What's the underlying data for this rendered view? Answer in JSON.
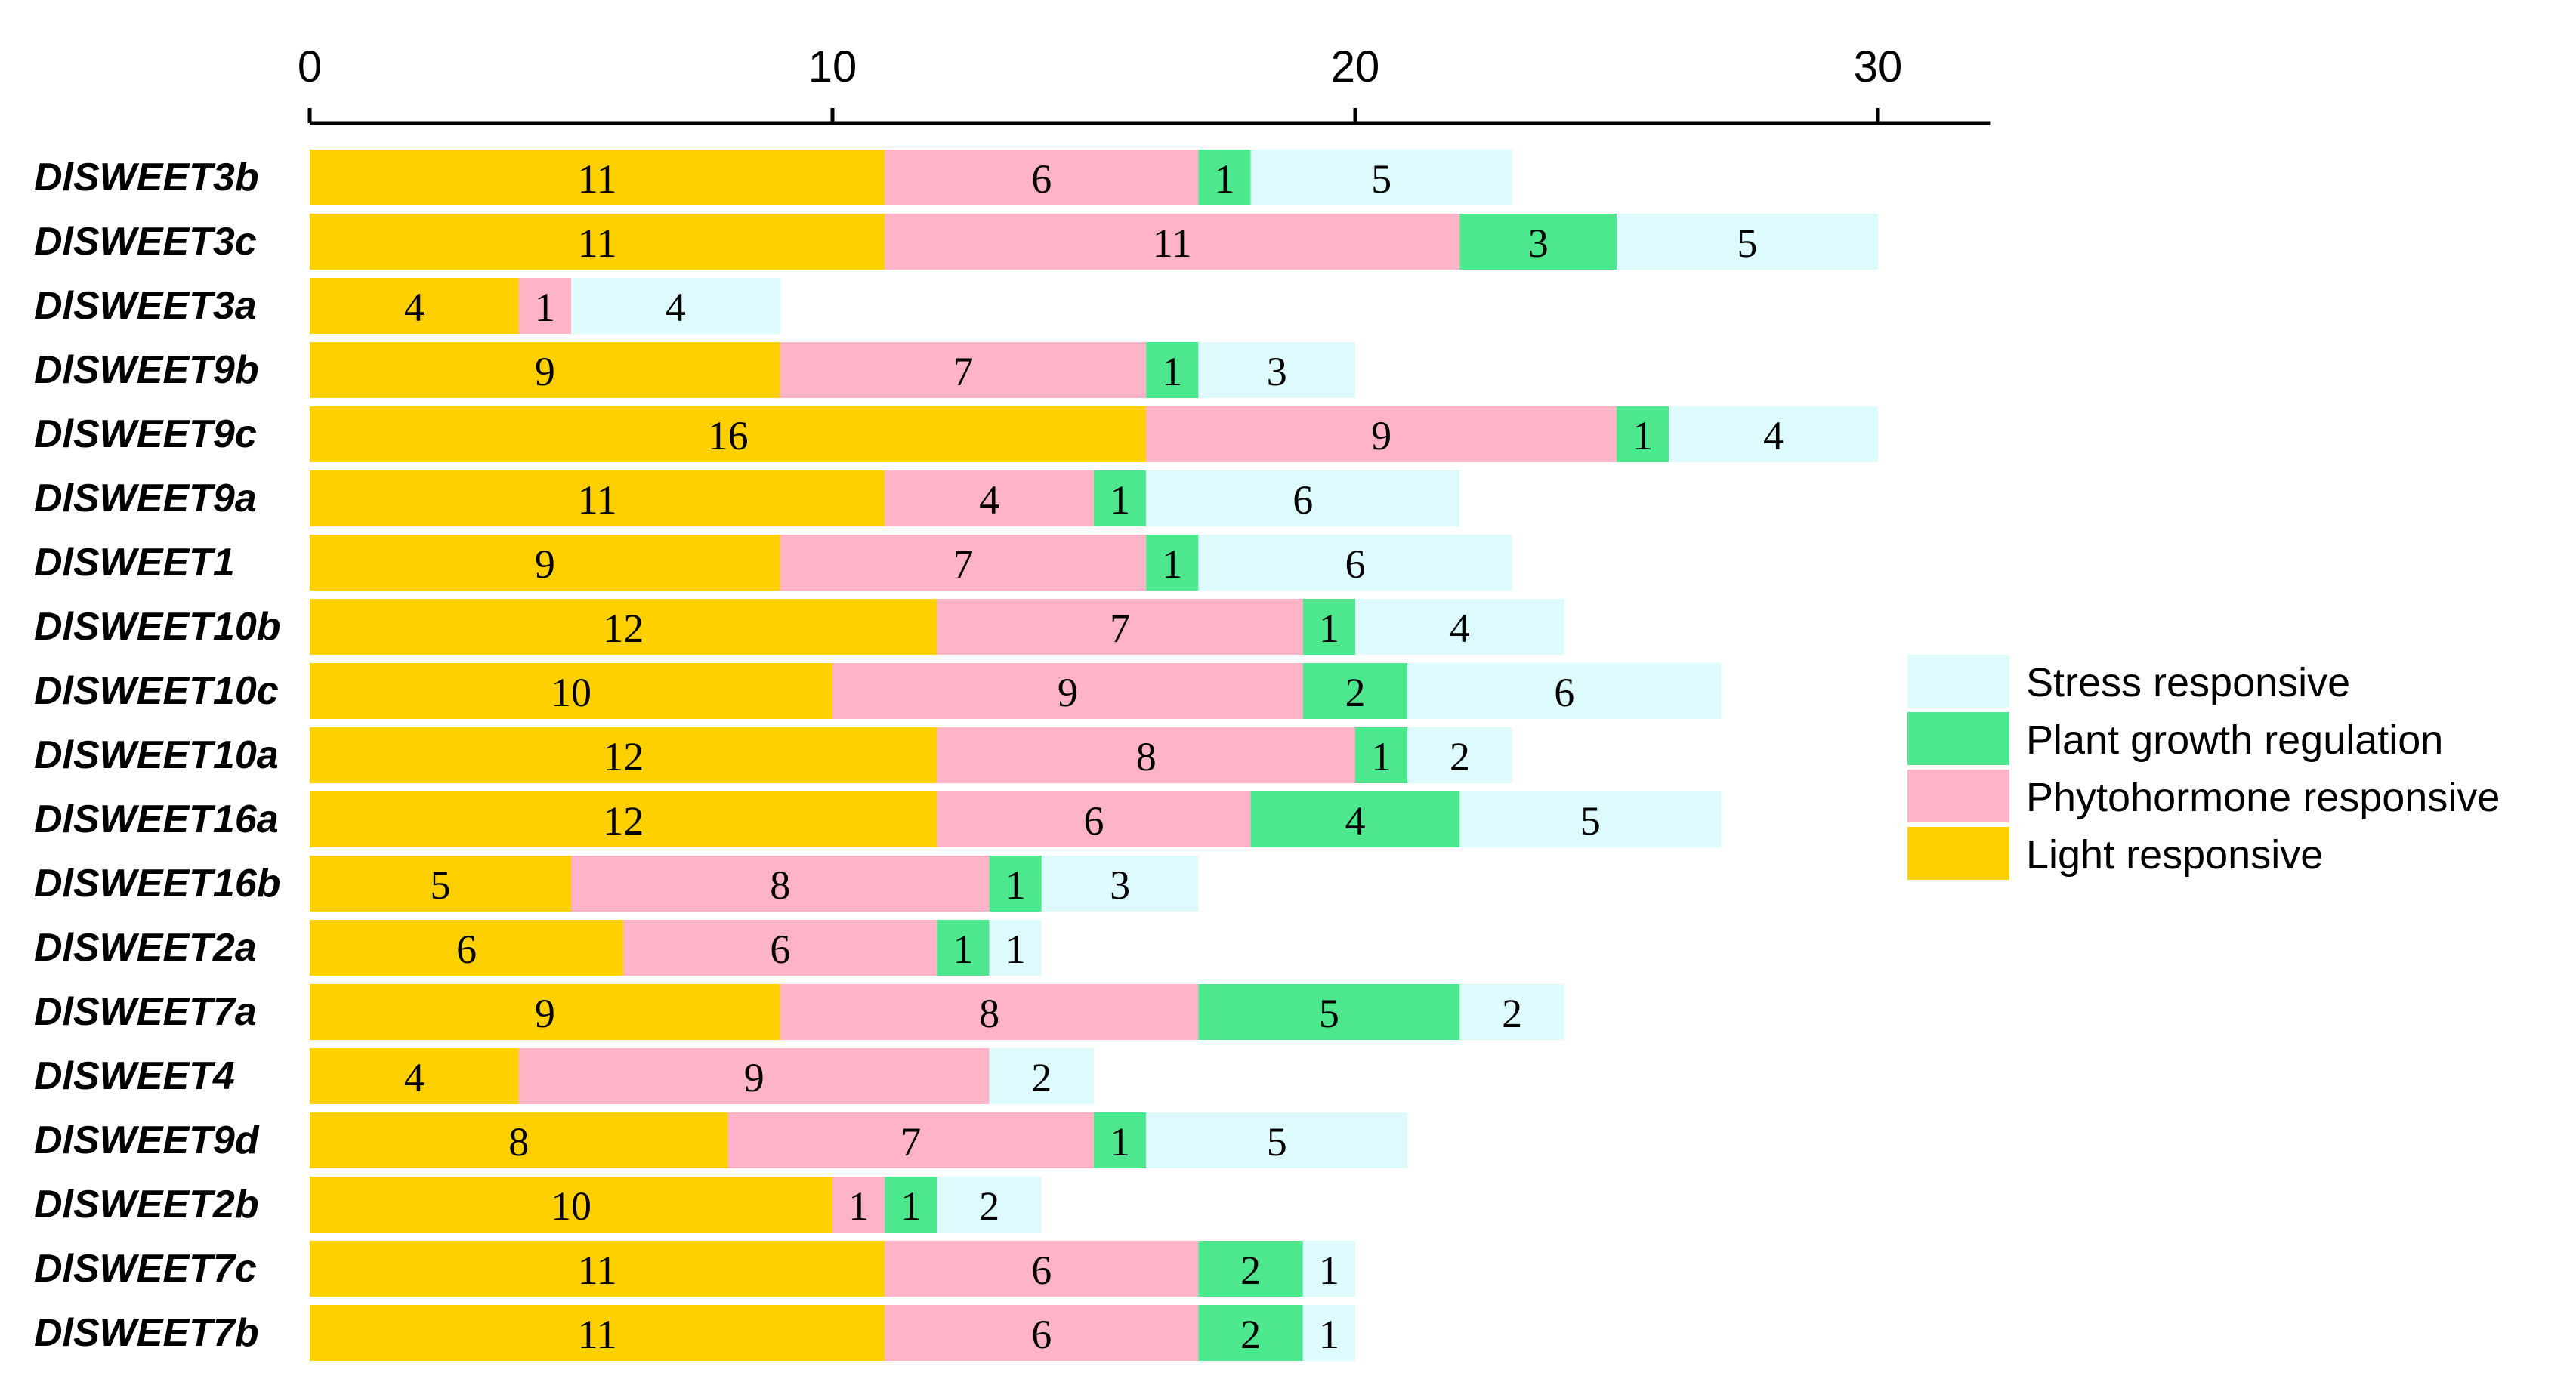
{
  "chart_data": {
    "type": "bar",
    "orientation": "horizontal",
    "stacked": true,
    "title": "",
    "xlabel": "",
    "ylabel": "",
    "xlim": [
      0,
      32
    ],
    "xticks": [
      0,
      10,
      20,
      30
    ],
    "grid": false,
    "legend_position": "right",
    "categories": [
      "DlSWEET3b",
      "DlSWEET3c",
      "DlSWEET3a",
      "DlSWEET9b",
      "DlSWEET9c",
      "DlSWEET9a",
      "DlSWEET1",
      "DlSWEET10b",
      "DlSWEET10c",
      "DlSWEET10a",
      "DlSWEET16a",
      "DlSWEET16b",
      "DlSWEET2a",
      "DlSWEET7a",
      "DlSWEET4",
      "DlSWEET9d",
      "DlSWEET2b",
      "DlSWEET7c",
      "DlSWEET7b"
    ],
    "series": [
      {
        "name": "Light responsive",
        "color": "#FFD000",
        "values": [
          11,
          11,
          4,
          9,
          16,
          11,
          9,
          12,
          10,
          12,
          12,
          5,
          6,
          9,
          4,
          8,
          10,
          11,
          11
        ]
      },
      {
        "name": "Phytohormone responsive",
        "color": "#FFB3C6",
        "values": [
          6,
          11,
          1,
          7,
          9,
          4,
          7,
          7,
          9,
          8,
          6,
          8,
          6,
          8,
          9,
          7,
          1,
          6,
          6
        ]
      },
      {
        "name": "Plant growth regulation",
        "color": "#4DE88E",
        "values": [
          1,
          3,
          0,
          1,
          1,
          1,
          1,
          1,
          2,
          1,
          4,
          1,
          1,
          5,
          0,
          1,
          1,
          2,
          2
        ]
      },
      {
        "name": "Stress responsive",
        "color": "#DDFBFD",
        "values": [
          5,
          5,
          4,
          3,
          4,
          6,
          6,
          4,
          6,
          2,
          5,
          3,
          1,
          2,
          2,
          5,
          2,
          1,
          1
        ]
      }
    ],
    "legend_order": [
      "Stress responsive",
      "Plant growth regulation",
      "Phytohormone responsive",
      "Light responsive"
    ]
  }
}
